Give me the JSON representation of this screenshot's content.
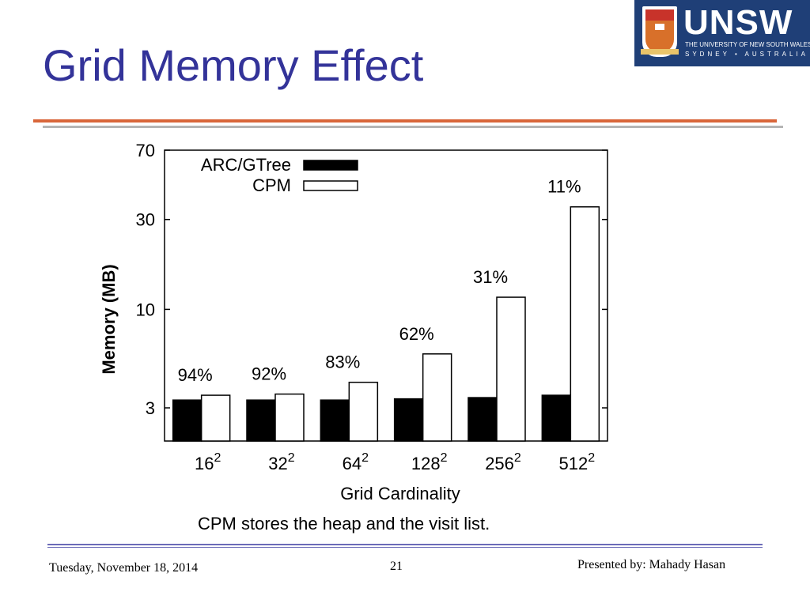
{
  "slide": {
    "title": "Grid Memory Effect",
    "caption": "CPM stores the heap and the visit list."
  },
  "logo": {
    "wordmark": "UNSW",
    "line1": "THE UNIVERSITY OF NEW SOUTH WALES",
    "line2": "SYDNEY • AUSTRALIA"
  },
  "footer": {
    "date": "Tuesday, November 18, 2014",
    "page": "21",
    "presenter": "Presented by: Mahady Hasan"
  },
  "colors": {
    "title": "#333399",
    "orange_rule": "#d9663a",
    "gray_rule": "#b5b5b5",
    "footer_rule": "#6b6bb8",
    "logo_bg": "#1f3f77"
  },
  "chart_data": {
    "type": "bar",
    "title": "",
    "xlabel": "Grid Cardinality",
    "ylabel": "Memory (MB)",
    "y_scale": "log",
    "ylim": [
      2,
      70
    ],
    "y_ticks": [
      3,
      10,
      30,
      70
    ],
    "categories": [
      {
        "base": "16",
        "exp": "2"
      },
      {
        "base": "32",
        "exp": "2"
      },
      {
        "base": "64",
        "exp": "2"
      },
      {
        "base": "128",
        "exp": "2"
      },
      {
        "base": "256",
        "exp": "2"
      },
      {
        "base": "512",
        "exp": "2"
      }
    ],
    "series": [
      {
        "name": "ARC/GTree",
        "fill": "#000000",
        "values": [
          3.3,
          3.3,
          3.3,
          3.35,
          3.4,
          3.5
        ]
      },
      {
        "name": "CPM",
        "fill": "#ffffff",
        "values": [
          3.5,
          3.55,
          4.1,
          5.8,
          11.6,
          35.0
        ]
      }
    ],
    "annotations": [
      "94%",
      "92%",
      "83%",
      "62%",
      "31%",
      "11%"
    ],
    "legend": "top-left",
    "grid": false
  }
}
